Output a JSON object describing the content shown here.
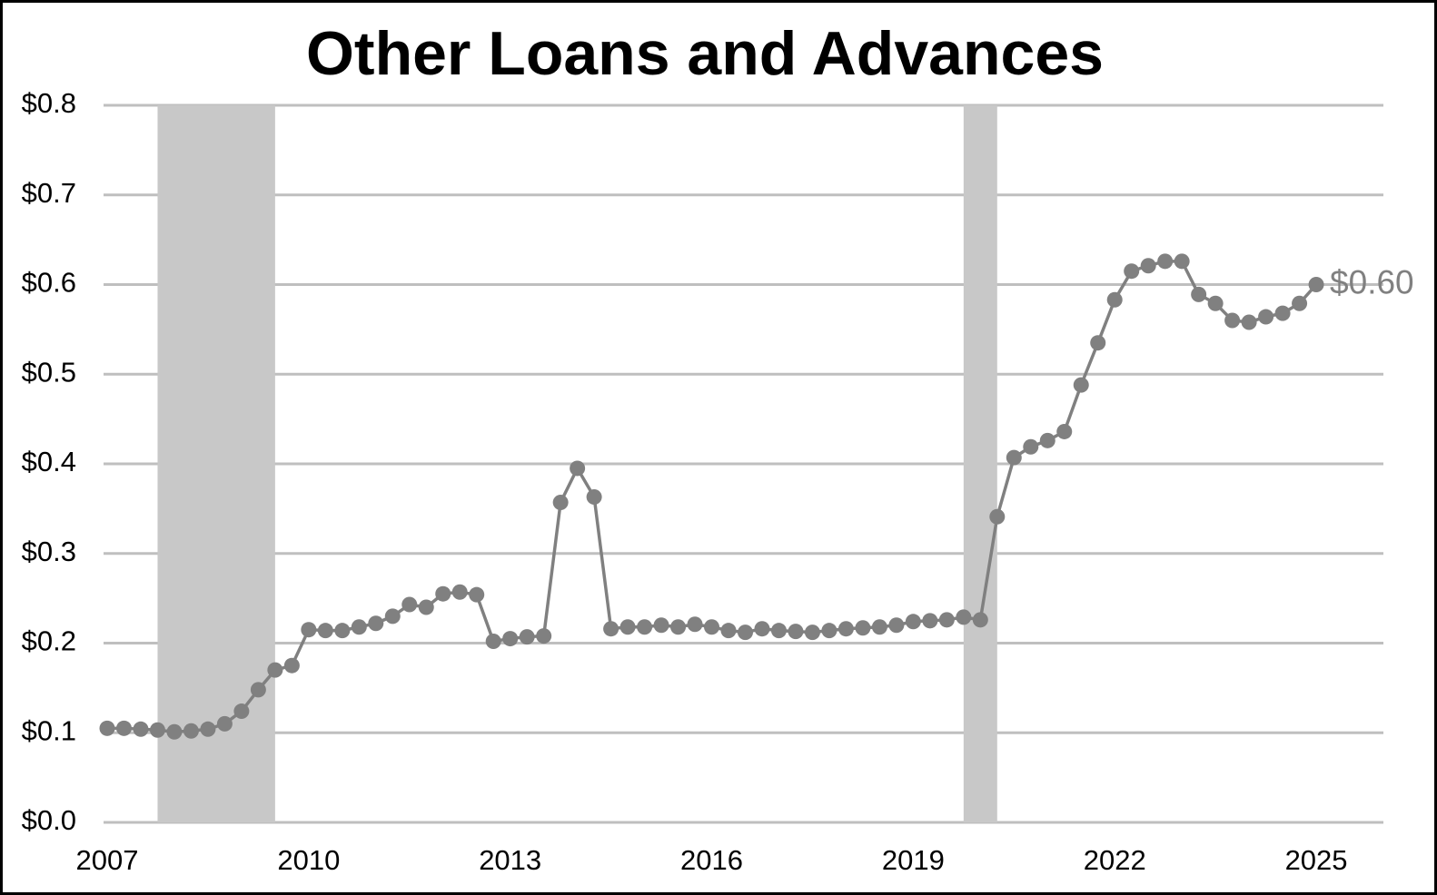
{
  "chart_data": {
    "type": "line",
    "title": "Other Loans and Advances",
    "x": [
      2007,
      2007.25,
      2007.5,
      2007.75,
      2008,
      2008.25,
      2008.5,
      2008.75,
      2009,
      2009.25,
      2009.5,
      2009.75,
      2010,
      2010.25,
      2010.5,
      2010.75,
      2011,
      2011.25,
      2011.5,
      2011.75,
      2012,
      2012.25,
      2012.5,
      2012.75,
      2013,
      2013.25,
      2013.5,
      2013.75,
      2014,
      2014.25,
      2014.5,
      2014.75,
      2015,
      2015.25,
      2015.5,
      2015.75,
      2016,
      2016.25,
      2016.5,
      2016.75,
      2017,
      2017.25,
      2017.5,
      2017.75,
      2018,
      2018.25,
      2018.5,
      2018.75,
      2019,
      2019.25,
      2019.5,
      2019.75,
      2020,
      2020.25,
      2020.5,
      2020.75,
      2021,
      2021.25,
      2021.5,
      2021.75,
      2022,
      2022.25,
      2022.5,
      2022.75,
      2023,
      2023.25,
      2023.5,
      2023.75,
      2024,
      2024.25,
      2024.5,
      2024.75,
      2025
    ],
    "series": [
      {
        "color": "#808080",
        "values": [
          0.105,
          0.105,
          0.104,
          0.103,
          0.101,
          0.102,
          0.104,
          0.11,
          0.124,
          0.148,
          0.17,
          0.175,
          0.215,
          0.214,
          0.214,
          0.218,
          0.222,
          0.23,
          0.243,
          0.24,
          0.255,
          0.257,
          0.254,
          0.202,
          0.205,
          0.207,
          0.208,
          0.357,
          0.395,
          0.363,
          0.216,
          0.218,
          0.218,
          0.22,
          0.218,
          0.221,
          0.218,
          0.214,
          0.212,
          0.216,
          0.214,
          0.213,
          0.212,
          0.214,
          0.216,
          0.217,
          0.218,
          0.22,
          0.224,
          0.225,
          0.226,
          0.229,
          0.226,
          0.341,
          0.407,
          0.419,
          0.426,
          0.436,
          0.488,
          0.535,
          0.583,
          0.615,
          0.621,
          0.626,
          0.626,
          0.589,
          0.579,
          0.56,
          0.558,
          0.564,
          0.568,
          0.579,
          0.6
        ],
        "value_labels": [
          null,
          null,
          null,
          null,
          null,
          null,
          null,
          null,
          null,
          null,
          null,
          null,
          null,
          null,
          null,
          null,
          null,
          null,
          null,
          null,
          null,
          null,
          null,
          null,
          null,
          null,
          null,
          null,
          null,
          null,
          null,
          null,
          null,
          null,
          null,
          null,
          null,
          null,
          null,
          null,
          null,
          null,
          null,
          null,
          null,
          null,
          null,
          null,
          null,
          null,
          null,
          null,
          null,
          null,
          null,
          null,
          null,
          null,
          null,
          null,
          null,
          null,
          null,
          null,
          null,
          null,
          null,
          null,
          null,
          null,
          null,
          null,
          "$0.60"
        ]
      }
    ],
    "shaded_periods": [
      [
        2007.75,
        2009.5
      ],
      [
        2019.75,
        2020.25
      ]
    ],
    "shade_color": "#c8c8c8",
    "xlim": [
      2007,
      2026
    ],
    "xticks": [
      2007,
      2010,
      2013,
      2016,
      2019,
      2022,
      2025
    ],
    "ylim": [
      0,
      0.8
    ],
    "yticks": [
      {
        "value": 0,
        "label": "$0.0"
      },
      {
        "value": 0.1,
        "label": "$0.1"
      },
      {
        "value": 0.2,
        "label": "$0.2"
      },
      {
        "value": 0.3,
        "label": "$0.3"
      },
      {
        "value": 0.4,
        "label": "$0.4"
      },
      {
        "value": 0.5,
        "label": "$0.5"
      },
      {
        "value": 0.6,
        "label": "$0.6"
      },
      {
        "value": 0.7,
        "label": "$0.7"
      },
      {
        "value": 0.8,
        "label": "$0.8"
      }
    ],
    "grid": true
  }
}
